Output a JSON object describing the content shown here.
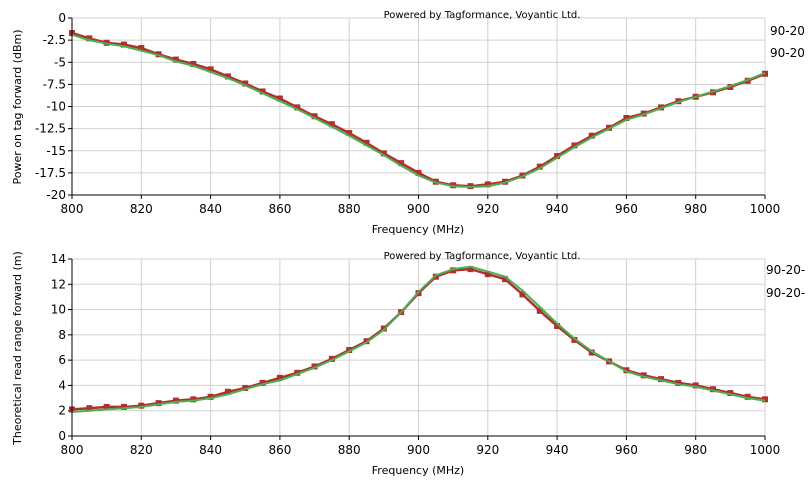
{
  "colors": {
    "series_a": "#b03030",
    "series_b": "#4caf50"
  },
  "chart_data": [
    {
      "type": "line",
      "credit": "Powered by Tagformance, Voyantic Ltd.",
      "xlabel": "Frequency (MHz)",
      "ylabel": "Power on tag forward (dBm)",
      "xlim": [
        800,
        1000
      ],
      "ylim": [
        -20,
        0
      ],
      "xticks": [
        "800",
        "820",
        "840",
        "860",
        "880",
        "900",
        "920",
        "940",
        "960",
        "980",
        "1000"
      ],
      "yticks": [
        "0",
        "-2.5",
        "-5",
        "-7.5",
        "-10",
        "-12.5",
        "-15",
        "-17.5",
        "-20"
      ],
      "legend": [
        "90-20",
        "90-20"
      ],
      "x": [
        800,
        805,
        810,
        815,
        820,
        825,
        830,
        835,
        840,
        845,
        850,
        855,
        860,
        865,
        870,
        875,
        880,
        885,
        890,
        895,
        900,
        905,
        910,
        915,
        920,
        925,
        930,
        935,
        940,
        945,
        950,
        955,
        960,
        965,
        970,
        975,
        980,
        985,
        990,
        995,
        1000
      ],
      "series": [
        {
          "values": [
            -1.7,
            -2.3,
            -2.8,
            -3.0,
            -3.4,
            -4.1,
            -4.7,
            -5.2,
            -5.8,
            -6.6,
            -7.4,
            -8.3,
            -9.1,
            -10.1,
            -11.1,
            -12.0,
            -13.0,
            -14.1,
            -15.3,
            -16.4,
            -17.5,
            -18.5,
            -18.9,
            -19.0,
            -18.8,
            -18.5,
            -17.8,
            -16.8,
            -15.6,
            -14.4,
            -13.3,
            -12.4,
            -11.3,
            -10.8,
            -10.1,
            -9.4,
            -8.9,
            -8.4,
            -7.8,
            -7.1,
            -6.3
          ]
        },
        {
          "values": [
            -1.9,
            -2.5,
            -2.9,
            -3.2,
            -3.7,
            -4.2,
            -4.9,
            -5.4,
            -6.1,
            -6.8,
            -7.6,
            -8.5,
            -9.4,
            -10.3,
            -11.3,
            -12.3,
            -13.3,
            -14.4,
            -15.5,
            -16.7,
            -17.8,
            -18.6,
            -19.0,
            -19.1,
            -19.0,
            -18.6,
            -17.9,
            -17.0,
            -15.8,
            -14.6,
            -13.5,
            -12.5,
            -11.5,
            -10.9,
            -10.2,
            -9.5,
            -8.9,
            -8.3,
            -7.7,
            -7.0,
            -6.2
          ]
        }
      ]
    },
    {
      "type": "line",
      "credit": "Powered by Tagformance, Voyantic Ltd.",
      "xlabel": "Frequency (MHz)",
      "ylabel": "Theoretical read range forward (m)",
      "xlim": [
        800,
        1000
      ],
      "ylim": [
        0,
        14
      ],
      "xticks": [
        "800",
        "820",
        "840",
        "860",
        "880",
        "900",
        "920",
        "940",
        "960",
        "980",
        "1000"
      ],
      "yticks": [
        "14",
        "12",
        "10",
        "8",
        "6",
        "4",
        "2",
        "0"
      ],
      "legend": [
        "90-20-",
        "90-20-"
      ],
      "x": [
        800,
        805,
        810,
        815,
        820,
        825,
        830,
        835,
        840,
        845,
        850,
        855,
        860,
        865,
        870,
        875,
        880,
        885,
        890,
        895,
        900,
        905,
        910,
        915,
        920,
        925,
        930,
        935,
        940,
        945,
        950,
        955,
        960,
        965,
        970,
        975,
        980,
        985,
        990,
        995,
        1000
      ],
      "series": [
        {
          "values": [
            2.1,
            2.2,
            2.3,
            2.3,
            2.4,
            2.6,
            2.8,
            2.9,
            3.1,
            3.5,
            3.8,
            4.2,
            4.6,
            5.0,
            5.5,
            6.1,
            6.8,
            7.5,
            8.5,
            9.8,
            11.3,
            12.6,
            13.1,
            13.2,
            12.8,
            12.4,
            11.2,
            9.9,
            8.7,
            7.6,
            6.6,
            5.9,
            5.2,
            4.8,
            4.5,
            4.2,
            4.0,
            3.7,
            3.4,
            3.1,
            2.9
          ]
        },
        {
          "values": [
            1.9,
            2.0,
            2.1,
            2.2,
            2.3,
            2.5,
            2.7,
            2.8,
            3.0,
            3.3,
            3.7,
            4.1,
            4.4,
            4.9,
            5.4,
            6.0,
            6.7,
            7.4,
            8.4,
            9.8,
            11.4,
            12.7,
            13.2,
            13.4,
            13.0,
            12.6,
            11.5,
            10.2,
            8.9,
            7.7,
            6.7,
            5.9,
            5.1,
            4.7,
            4.4,
            4.1,
            3.9,
            3.6,
            3.3,
            3.0,
            2.8
          ]
        }
      ]
    }
  ]
}
